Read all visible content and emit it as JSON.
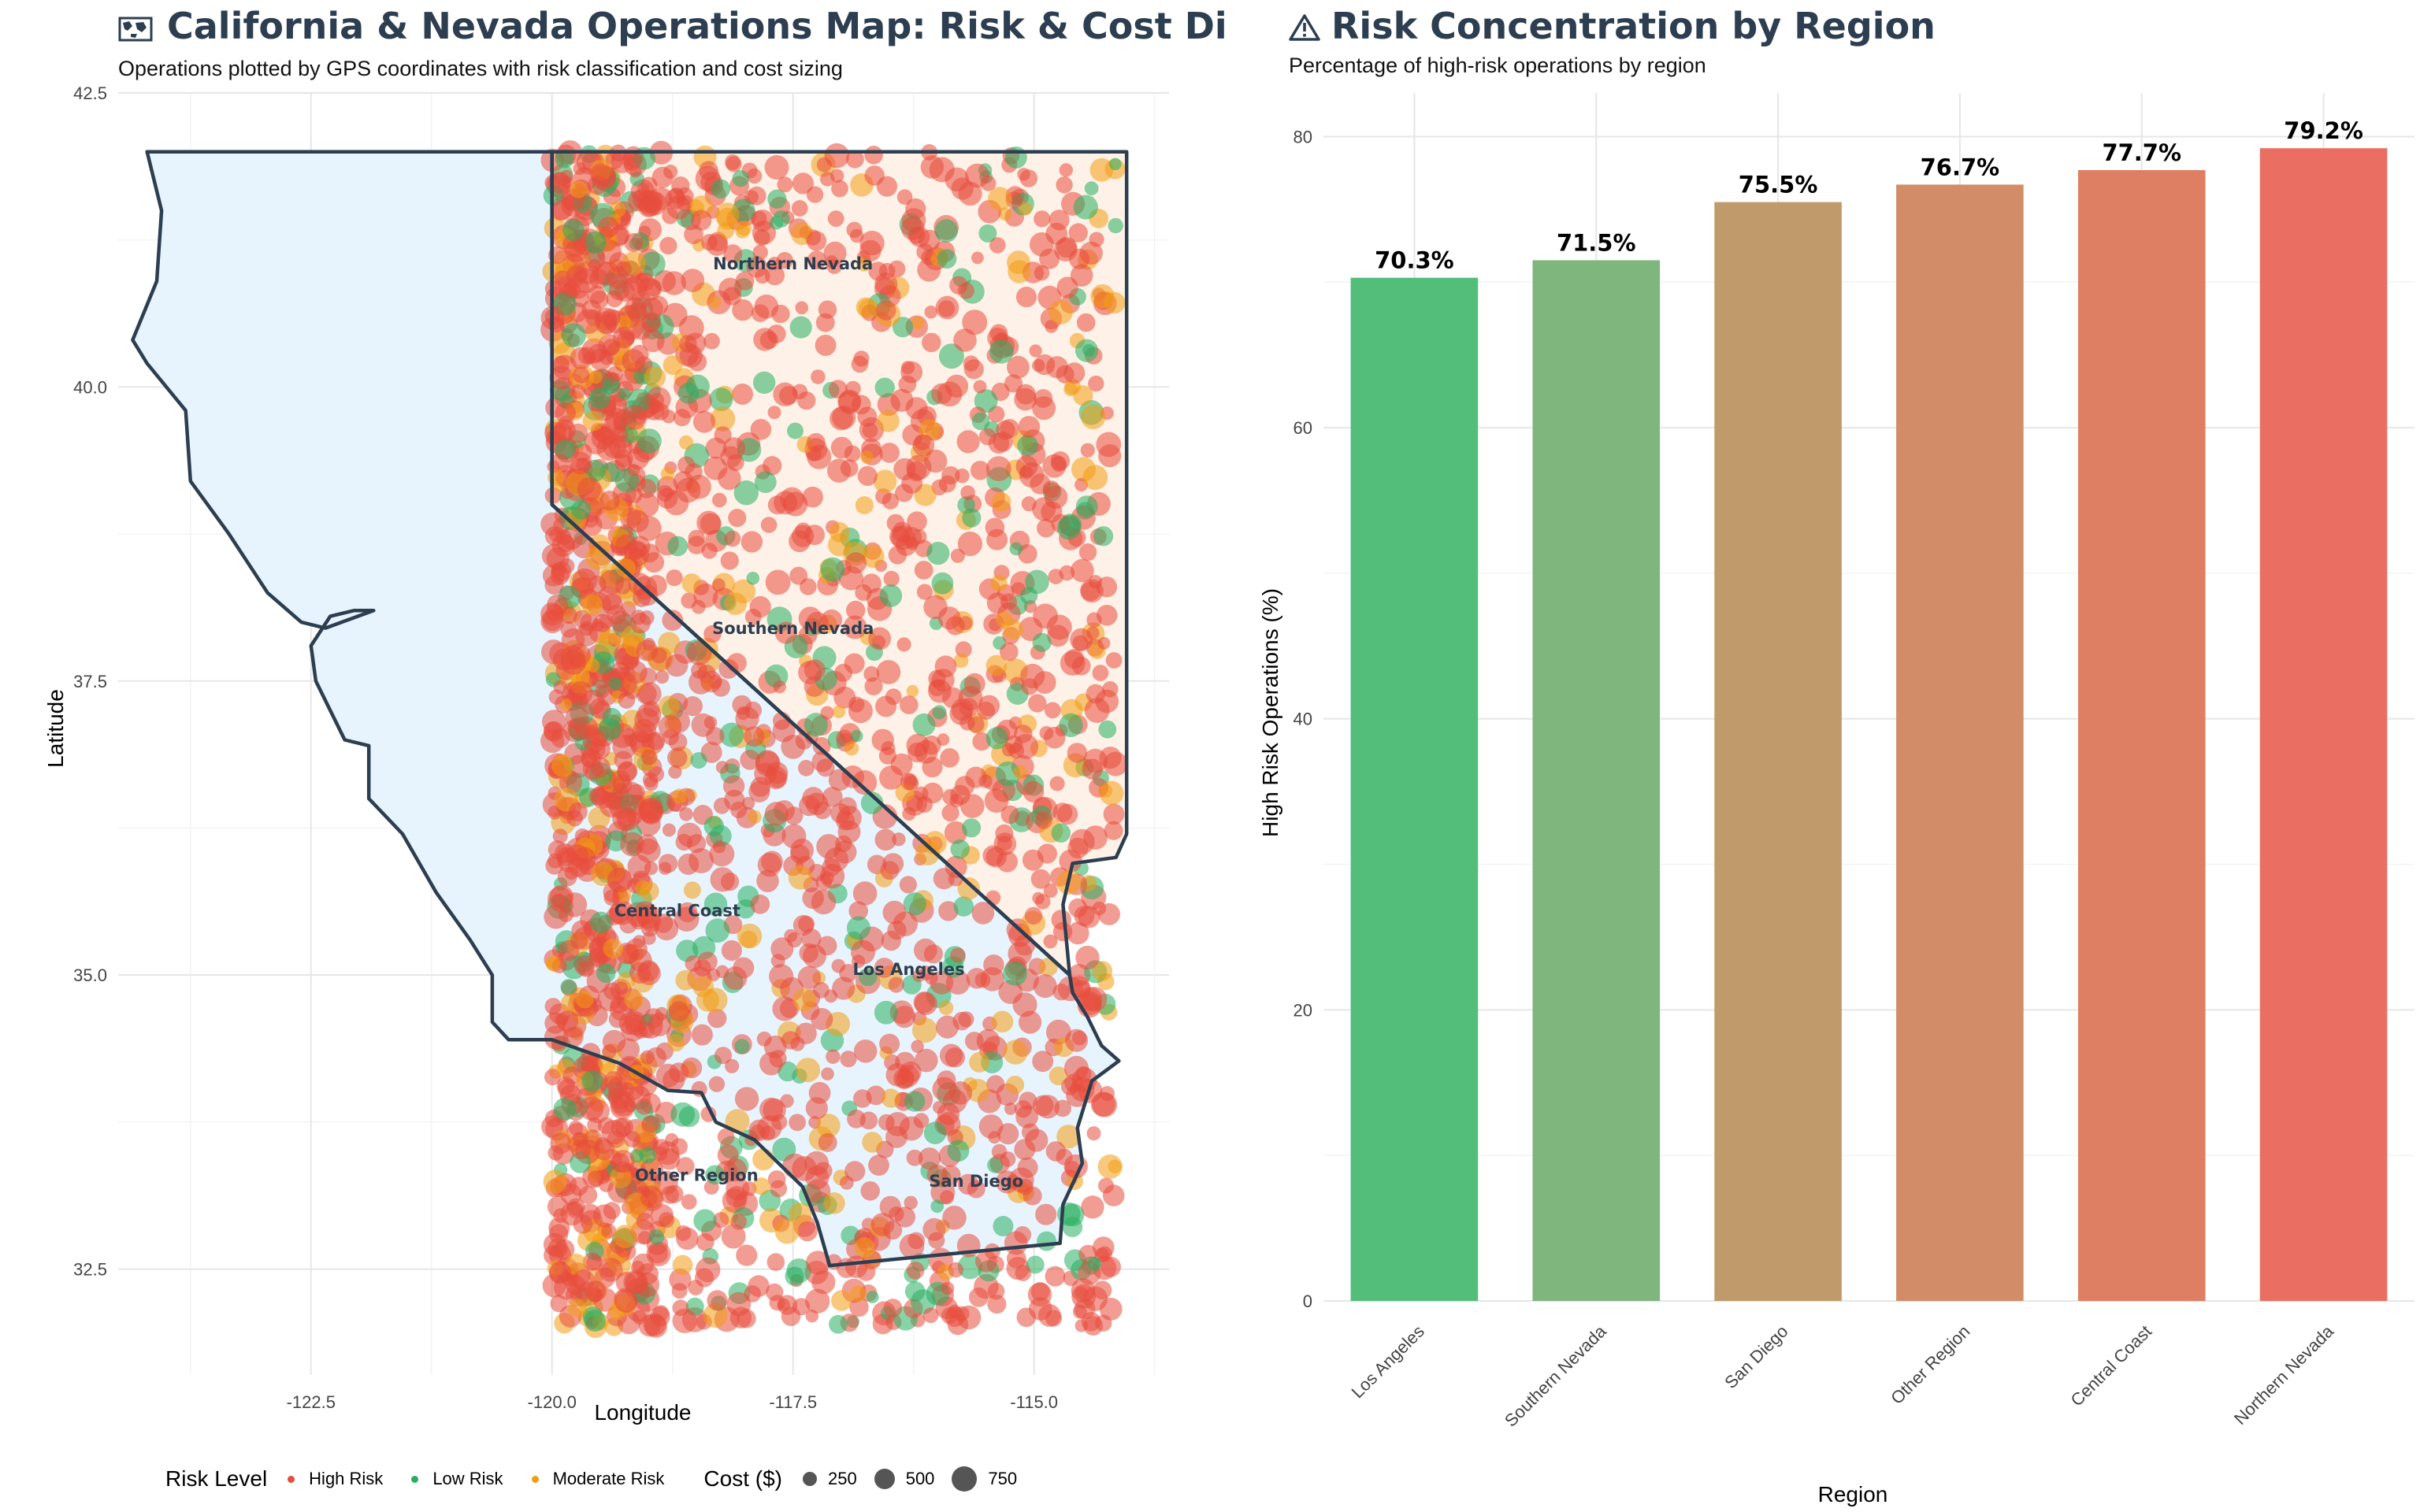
{
  "chart_data": [
    {
      "type": "scatter",
      "title": "California & Nevada Operations Map: Risk & Cost Distribu",
      "title_icon": "world-map-icon",
      "subtitle": "Operations plotted by GPS coordinates with risk classification and cost sizing",
      "xlabel": "Longitude",
      "ylabel": "Latitude",
      "xlim": [
        -124.5,
        -113.6
      ],
      "ylim": [
        31.6,
        42.5
      ],
      "x_ticks": [
        "-122.5",
        "-120.0",
        "-117.5",
        "-115.0"
      ],
      "y_ticks": [
        "32.5",
        "35.0",
        "37.5",
        "40.0",
        "42.5"
      ],
      "grid": true,
      "state_fills": {
        "california": "#e8f4fd",
        "nevada": "#fef2e8",
        "border": "#2c3e50"
      },
      "region_labels": [
        {
          "name": "Northern Nevada",
          "lon": -117.5,
          "lat": 41.0
        },
        {
          "name": "Southern Nevada",
          "lon": -117.5,
          "lat": 37.9
        },
        {
          "name": "Central Coast",
          "lon": -118.7,
          "lat": 35.5
        },
        {
          "name": "Los Angeles",
          "lon": -116.3,
          "lat": 35.0
        },
        {
          "name": "Other Region",
          "lon": -118.5,
          "lat": 33.25
        },
        {
          "name": "San Diego",
          "lon": -115.6,
          "lat": 33.2
        }
      ],
      "legend": {
        "risk_title": "Risk Level",
        "risk_levels": [
          {
            "name": "High Risk",
            "color": "#e74c3c"
          },
          {
            "name": "Low Risk",
            "color": "#27ae60"
          },
          {
            "name": "Moderate Risk",
            "color": "#f39c12"
          }
        ],
        "cost_title": "Cost ($)",
        "cost_sizes": [
          {
            "label": "250",
            "value": 250
          },
          {
            "label": "500",
            "value": 500
          },
          {
            "label": "750",
            "value": 750
          }
        ],
        "placement": "bottom"
      },
      "point_generation": {
        "note_count": 2600
      }
    },
    {
      "type": "bar",
      "title": "Risk Concentration by Region",
      "title_icon": "warning-icon",
      "subtitle": "Percentage of high-risk operations by region",
      "xlabel": "Region",
      "ylabel": "High Risk Operations (%)",
      "ylim": [
        0,
        83
      ],
      "y_ticks": [
        "0",
        "20",
        "40",
        "60",
        "80"
      ],
      "categories": [
        "Los Angeles",
        "Southern Nevada",
        "San Diego",
        "Other Region",
        "Central Coast",
        "Northern Nevada"
      ],
      "values": [
        70.3,
        71.5,
        75.5,
        76.7,
        77.7,
        79.2
      ],
      "data_labels": [
        "70.3%",
        "71.5%",
        "75.5%",
        "76.7%",
        "77.7%",
        "79.2%"
      ],
      "colors": [
        "#52be7a",
        "#7fb67d",
        "#c09a6a",
        "#d28d68",
        "#de7e63",
        "#eb6e62"
      ],
      "grid": true
    }
  ],
  "header": {
    "map_title": "California & Nevada Operations Map: Risk & Cost Distribu",
    "map_subtitle": "Operations plotted by GPS coordinates with risk classification and cost sizing",
    "bar_title": "Risk Concentration by Region",
    "bar_subtitle": "Percentage of high-risk operations by region"
  }
}
